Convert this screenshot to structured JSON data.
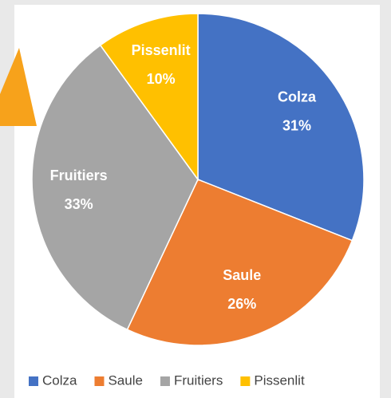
{
  "chart_data": {
    "type": "pie",
    "categories": [
      "Colza",
      "Saule",
      "Fruitiers",
      "Pissenlit"
    ],
    "values": [
      31,
      26,
      33,
      10
    ],
    "value_labels": [
      "31%",
      "26%",
      "33%",
      "10%"
    ],
    "colors": [
      "#4472c4",
      "#ed7d31",
      "#a5a5a5",
      "#ffc000"
    ],
    "legend": "bottom"
  }
}
